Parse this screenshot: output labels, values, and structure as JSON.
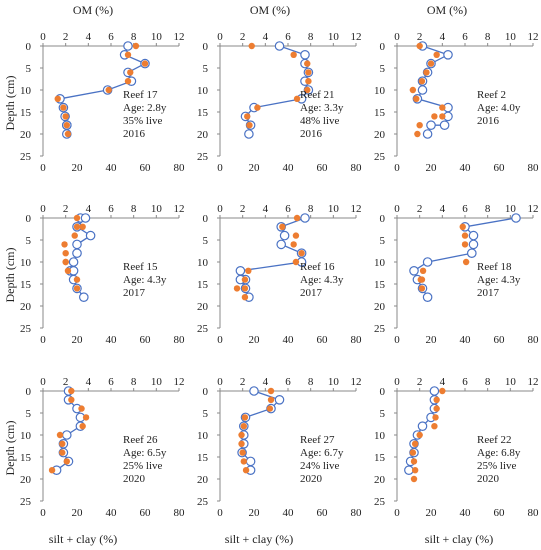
{
  "figure": {
    "top_axis_label": "OM (%)",
    "bottom_axis_label": "silt + clay (%)",
    "left_axis_label": "Depth (cm)"
  },
  "chart_data": [
    {
      "type": "line",
      "annotation": [
        "Reef 17",
        "Age: 2.8y",
        "35% live",
        "2016"
      ],
      "series": [
        {
          "axis": "silt+clay",
          "style": "line-open-circles",
          "x": [
            50,
            48,
            60,
            50,
            52,
            38,
            10,
            12,
            13,
            14,
            14,
            14
          ],
          "y": [
            0,
            2,
            4,
            6,
            8,
            10,
            12,
            14,
            16,
            18,
            18,
            20
          ]
        },
        {
          "axis": "OM",
          "style": "filled-dots",
          "x": [
            8.2,
            7.5,
            9,
            7.7,
            7.5,
            5.8,
            1.3,
            1.8,
            2,
            2.1,
            2.2
          ],
          "y": [
            0,
            2,
            4,
            6,
            8,
            10,
            12,
            14,
            16,
            18,
            20
          ]
        }
      ]
    },
    {
      "type": "line",
      "annotation": [
        "Reef 21",
        "Age: 3.3y",
        "48% live",
        "2016"
      ],
      "series": [
        {
          "axis": "silt+clay",
          "style": "line-open-circles",
          "x": [
            35,
            50,
            50,
            52,
            50,
            52,
            48,
            20,
            15,
            18,
            17
          ],
          "y": [
            0,
            2,
            4,
            6,
            8,
            10,
            12,
            14,
            16,
            18,
            20
          ]
        },
        {
          "axis": "OM",
          "style": "filled-dots",
          "x": [
            2.8,
            6.5,
            7.7,
            7.8,
            7.8,
            7.7,
            6.8,
            3.3,
            2.4,
            2.6
          ],
          "y": [
            0,
            2,
            4,
            6,
            8,
            10,
            12,
            14,
            16,
            18
          ]
        }
      ]
    },
    {
      "type": "line",
      "annotation": [
        "Reef 2",
        "Age: 4.0y",
        "2016"
      ],
      "series": [
        {
          "axis": "silt+clay",
          "style": "line-open-circles",
          "x": [
            15,
            30,
            20,
            18,
            15,
            15,
            12,
            30,
            30,
            28,
            20,
            18
          ],
          "y": [
            0,
            2,
            4,
            6,
            8,
            10,
            12,
            14,
            16,
            18,
            18,
            20
          ]
        },
        {
          "axis": "OM",
          "style": "filled-dots",
          "x": [
            2,
            3.5,
            3,
            2.6,
            2.2,
            1.4,
            1.7,
            4,
            4,
            3.3,
            2,
            1.8
          ],
          "y": [
            0,
            2,
            4,
            6,
            8,
            10,
            12,
            14,
            16,
            16,
            18,
            20
          ]
        }
      ]
    },
    {
      "type": "line",
      "annotation": [
        "Reef 15",
        "Age: 4.3y",
        "2017"
      ],
      "series": [
        {
          "axis": "silt+clay",
          "style": "line-open-circles",
          "x": [
            22,
            25,
            20,
            28,
            20,
            20,
            18,
            16,
            18,
            18,
            20,
            24
          ],
          "y": [
            0,
            0,
            2,
            4,
            6,
            8,
            10,
            12,
            12,
            14,
            16,
            18
          ]
        },
        {
          "axis": "OM",
          "style": "filled-dots",
          "x": [
            3,
            3,
            3.5,
            2.8,
            1.9,
            2,
            2,
            2,
            2.2,
            3,
            3
          ],
          "y": [
            0,
            2,
            2,
            4,
            6,
            8,
            10,
            10,
            12,
            14,
            16
          ]
        }
      ]
    },
    {
      "type": "line",
      "annotation": [
        "Reef 16",
        "Age: 4.3y",
        "2017"
      ],
      "series": [
        {
          "axis": "silt+clay",
          "style": "line-open-circles",
          "x": [
            50,
            36,
            38,
            36,
            48,
            48,
            12,
            15,
            12,
            15,
            17
          ],
          "y": [
            0,
            2,
            4,
            6,
            8,
            10,
            12,
            14,
            14,
            16,
            18
          ]
        },
        {
          "axis": "OM",
          "style": "filled-dots",
          "x": [
            6.8,
            5.5,
            6.7,
            6.5,
            7.2,
            6.7,
            2.5,
            2.2,
            2.2,
            1.5,
            2.2
          ],
          "y": [
            0,
            2,
            4,
            6,
            8,
            10,
            12,
            14,
            16,
            16,
            18
          ]
        }
      ]
    },
    {
      "type": "line",
      "annotation": [
        "Reef 18",
        "Age: 4.3y",
        "2017"
      ],
      "series": [
        {
          "axis": "silt+clay",
          "style": "line-open-circles",
          "x": [
            70,
            40,
            45,
            45,
            44,
            18,
            10,
            12,
            15,
            18
          ],
          "y": [
            0,
            2,
            4,
            6,
            8,
            10,
            12,
            14,
            16,
            18
          ]
        },
        {
          "axis": "OM",
          "style": "filled-dots",
          "x": [
            5.8,
            6,
            6,
            6.1,
            2.3,
            2.2,
            2.1,
            2.2
          ],
          "y": [
            2,
            4,
            6,
            10,
            12,
            14,
            14,
            16
          ]
        }
      ]
    },
    {
      "type": "line",
      "annotation": [
        "Reef 26",
        "Age: 6.5y",
        "25% live",
        "2020"
      ],
      "series": [
        {
          "axis": "silt+clay",
          "style": "line-open-circles",
          "x": [
            15,
            15,
            20,
            22,
            22,
            14,
            12,
            12,
            15,
            8
          ],
          "y": [
            0,
            2,
            4,
            6,
            8,
            10,
            12,
            14,
            16,
            18
          ]
        },
        {
          "axis": "OM",
          "style": "filled-dots",
          "x": [
            2.5,
            2.5,
            3.4,
            3.8,
            3.5,
            1.5,
            1.7,
            1.7,
            2.1,
            0.8
          ],
          "y": [
            0,
            2,
            4,
            6,
            8,
            10,
            12,
            14,
            16,
            18
          ]
        }
      ]
    },
    {
      "type": "line",
      "annotation": [
        "Reef 27",
        "Age: 6.7y",
        "24% live",
        "2020"
      ],
      "series": [
        {
          "axis": "silt+clay",
          "style": "line-open-circles",
          "x": [
            20,
            35,
            30,
            15,
            14,
            14,
            14,
            13,
            18,
            18
          ],
          "y": [
            0,
            2,
            4,
            6,
            8,
            10,
            12,
            14,
            16,
            18
          ]
        },
        {
          "axis": "OM",
          "style": "filled-dots",
          "x": [
            4.5,
            4.5,
            4.4,
            2.2,
            2.1,
            1.9,
            1.9,
            2,
            2.1,
            2.3
          ],
          "y": [
            0,
            2,
            4,
            6,
            8,
            10,
            12,
            14,
            16,
            18
          ]
        }
      ]
    },
    {
      "type": "line",
      "annotation": [
        "Reef 22",
        "Age: 6.8y",
        "25% live",
        "2020"
      ],
      "series": [
        {
          "axis": "silt+clay",
          "style": "line-open-circles",
          "x": [
            22,
            22,
            22,
            20,
            15,
            12,
            10,
            10,
            8,
            7
          ],
          "y": [
            0,
            2,
            4,
            6,
            8,
            10,
            12,
            14,
            16,
            18
          ]
        },
        {
          "axis": "OM",
          "style": "filled-dots",
          "x": [
            4,
            3.5,
            3.5,
            3.4,
            3.3,
            2,
            1.6,
            1.4,
            1.5,
            1.6,
            1.5
          ],
          "y": [
            0,
            2,
            4,
            6,
            8,
            10,
            12,
            14,
            16,
            18,
            20
          ]
        }
      ]
    }
  ],
  "axes": {
    "top_ticks": [
      "0",
      "2",
      "4",
      "6",
      "8",
      "10",
      "12"
    ],
    "bottom_ticks": [
      "0",
      "20",
      "40",
      "60",
      "80"
    ],
    "left_ticks": [
      "0",
      "5",
      "10",
      "15",
      "20",
      "25"
    ],
    "om_range": [
      0,
      12
    ],
    "siltclay_range": [
      0,
      80
    ],
    "depth_range": [
      0,
      25
    ]
  },
  "colors": {
    "siltclay_series": "#4a72c4",
    "om_series": "#ed7d31",
    "axis": "#888888"
  }
}
